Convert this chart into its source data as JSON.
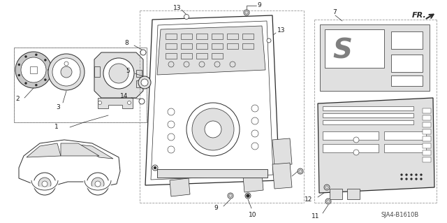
{
  "bg_color": "#ffffff",
  "diagram_code": "SJA4-B1610B",
  "line_color": "#2a2a2a",
  "label_color": "#1a1a1a",
  "gray_fill": "#c8c8c8",
  "light_gray": "#e0e0e0",
  "mid_gray": "#b0b0b0"
}
